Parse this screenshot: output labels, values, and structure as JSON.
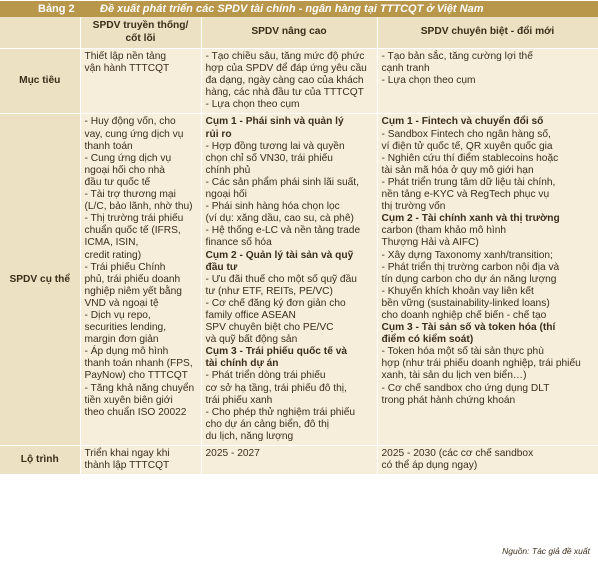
{
  "title": {
    "label": "Bảng 2",
    "text": "Đề xuất phát triển các SPDV tài chính - ngân hàng tại TTTCQT ở Việt Nam"
  },
  "headers": {
    "col1": [
      "SPDV truyền thống/",
      "cốt lõi"
    ],
    "col2": "SPDV nâng cao",
    "col3": "SPDV chuyên biệt - đổi mới"
  },
  "rows": {
    "muc_tieu": {
      "label": "Mục tiêu",
      "col1": [
        "Thiết lập nền tảng",
        "vận hành TTTCQT"
      ],
      "col2": [
        "- Tạo chiều sâu, tăng mức độ phức",
        "hợp của SPDV để đáp ứng yêu cầu",
        "đa dạng, ngày càng cao của khách",
        "hàng, các nhà đầu tư của TTTCQT",
        "- Lựa chọn theo cụm"
      ],
      "col3": [
        "- Tạo bản sắc, tăng cường lợi thế",
        "cạnh tranh",
        "- Lựa chọn theo cụm"
      ]
    },
    "spdv_cu_the": {
      "label": "SPDV cụ thể",
      "col1": [
        "- Huy động vốn, cho",
        "vay, cung ứng dịch vụ",
        "thanh toán",
        "- Cung ứng dịch vụ",
        "ngoại hối cho nhà",
        "đầu tư quốc tế",
        "- Tài trợ thương mại",
        "(L/C, bảo lãnh, nhờ thu)",
        "- Thị trường trái phiếu",
        "chuẩn quốc tế (IFRS,",
        "ICMA, ISIN,",
        "credit rating)",
        "- Trái phiếu Chính",
        "phủ, trái phiếu doanh",
        "nghiệp niêm yết bằng",
        "VND và ngoại tệ",
        "- Dịch vụ repo,",
        "securities lending,",
        "margin đơn giản",
        "- Áp dụng mô hình",
        "thanh toán nhanh (FPS,",
        "PayNow) cho TTTCQT",
        "- Tăng khả năng chuyển",
        "tiền xuyên biên giới",
        "theo chuẩn ISO 20022"
      ],
      "col2": [
        {
          "t": "Cụm 1 - Phái sinh và quản lý",
          "b": true
        },
        {
          "t": "rủi ro",
          "b": true
        },
        {
          "t": "- Hợp đồng tương lai và quyền",
          "b": false
        },
        {
          "t": "chọn chỉ số VN30, trái phiếu",
          "b": false
        },
        {
          "t": "chính phủ",
          "b": false
        },
        {
          "t": "- Các sản phẩm phái sinh lãi suất,",
          "b": false
        },
        {
          "t": "ngoại hối",
          "b": false
        },
        {
          "t": "- Phái sinh hàng hóa chọn lọc",
          "b": false
        },
        {
          "t": "(ví dụ: xăng dầu, cao su, cà phê)",
          "b": false
        },
        {
          "t": "- Hệ thống e-LC và nền tảng trade",
          "b": false
        },
        {
          "t": "finance số hóa",
          "b": false
        },
        {
          "t": "Cụm 2 - Quản lý tài sản và quỹ",
          "b": true
        },
        {
          "t": "đầu tư",
          "b": true
        },
        {
          "t": "- Ưu đãi thuế cho một số quỹ đầu",
          "b": false
        },
        {
          "t": "tư (như ETF, REITs, PE/VC)",
          "b": false
        },
        {
          "t": "- Cơ chế đăng ký đơn giản cho",
          "b": false
        },
        {
          "t": "family office ASEAN",
          "b": false
        },
        {
          "t": "SPV chuyên biệt cho PE/VC",
          "b": false
        },
        {
          "t": "và quỹ bất động sản",
          "b": false
        },
        {
          "t": "Cụm 3 - Trái phiếu quốc tế và",
          "b": true
        },
        {
          "t": "tài chính dự án",
          "b": true
        },
        {
          "t": "- Phát triển dòng trái phiếu",
          "b": false
        },
        {
          "t": "cơ sở hạ tầng, trái phiếu đô thị,",
          "b": false
        },
        {
          "t": "trái phiếu xanh",
          "b": false
        },
        {
          "t": "- Cho phép thử nghiệm trái phiếu",
          "b": false
        },
        {
          "t": "cho dự án cảng biển, đô thị",
          "b": false
        },
        {
          "t": "du lịch, năng lượng",
          "b": false
        }
      ],
      "col3": [
        {
          "t": "Cụm 1 - Fintech và chuyển đổi số",
          "b": true
        },
        {
          "t": "- Sandbox Fintech cho ngân hàng số,",
          "b": false
        },
        {
          "t": "ví điện tử quốc tế, QR xuyên quốc gia",
          "b": false
        },
        {
          "t": "- Nghiên cứu thí điểm stablecoins hoặc",
          "b": false
        },
        {
          "t": "tài sản mã hóa ở quy mô giới hạn",
          "b": false
        },
        {
          "t": "- Phát triển trung tâm dữ liệu tài chính,",
          "b": false
        },
        {
          "t": "nền tảng e-KYC và RegTech phục vụ",
          "b": false
        },
        {
          "t": "thị trường vốn",
          "b": false
        },
        {
          "t": "Cụm 2 - Tài chính xanh và thị trường",
          "b": true
        },
        {
          "t": "carbon (tham khảo mô hình",
          "b": false
        },
        {
          "t": "Thượng Hải và AIFC)",
          "b": false
        },
        {
          "t": "- Xây dựng Taxonomy xanh/transition;",
          "b": false
        },
        {
          "t": "- Phát triển thị trường carbon nội địa và",
          "b": false
        },
        {
          "t": "tín dụng carbon cho dự án năng lượng",
          "b": false
        },
        {
          "t": "- Khuyến khích khoản vay liên kết",
          "b": false
        },
        {
          "t": "bền vững (sustainability-linked loans)",
          "b": false
        },
        {
          "t": "cho doanh nghiệp chế biến - chế tạo",
          "b": false
        },
        {
          "t": "Cụm 3 - Tài sản số và token hóa (thí",
          "b": true
        },
        {
          "t": "điểm có kiểm soát)",
          "b": true
        },
        {
          "t": "- Token hóa một số tài sản thực phù",
          "b": false
        },
        {
          "t": "hợp (như trái phiếu doanh nghiệp, trái phiếu",
          "b": false
        },
        {
          "t": "xanh, tài sản du lịch ven biển…)",
          "b": false
        },
        {
          "t": "- Cơ chế sandbox cho ứng dụng DLT",
          "b": false
        },
        {
          "t": "trong phát hành chứng khoán",
          "b": false
        }
      ]
    },
    "lo_trinh": {
      "label": "Lộ trình",
      "col1": [
        "Triển khai ngay khi",
        "thành lập TTTCQT"
      ],
      "col2": [
        "2025 - 2027"
      ],
      "col3": [
        "2025 - 2030 (các cơ chế sandbox",
        "có thể áp dụng ngay)"
      ]
    }
  },
  "source": "Nguồn: Tác giả đề xuất"
}
